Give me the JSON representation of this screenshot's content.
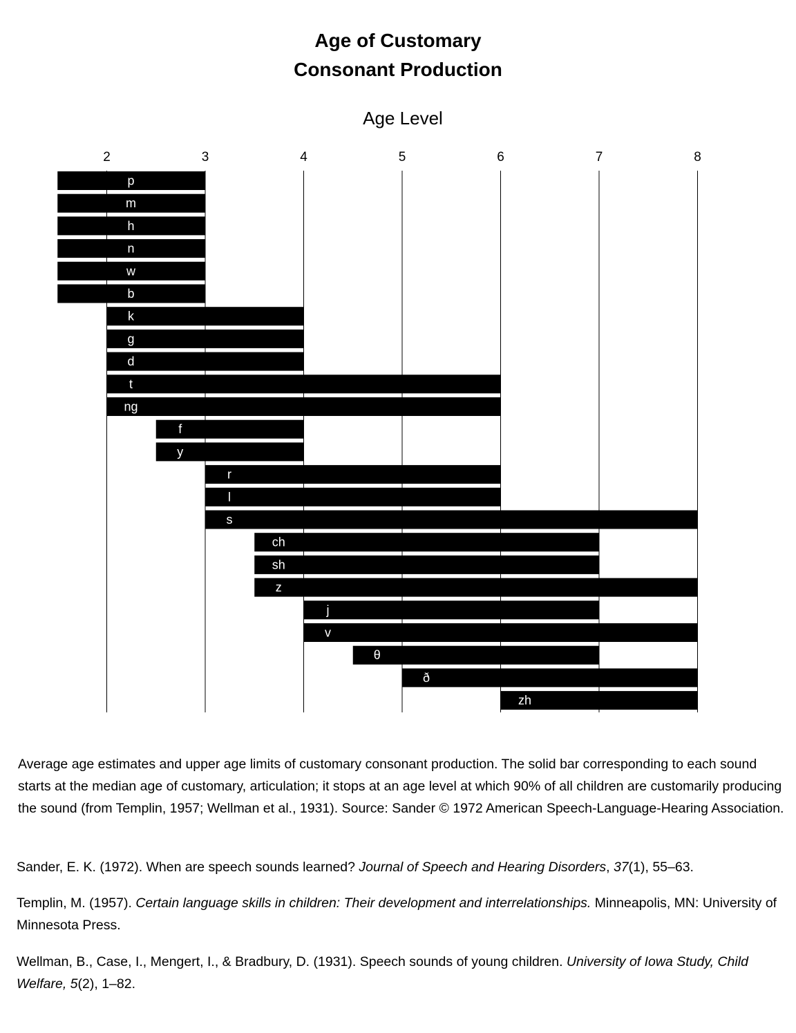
{
  "chart_data": {
    "type": "bar",
    "orientation": "horizontal-range",
    "title": [
      "Age of Customary",
      "Consonant Production"
    ],
    "xlabel": "Age Level",
    "x_ticks": [
      2,
      3,
      4,
      5,
      6,
      7,
      8
    ],
    "xlim": [
      1.5,
      8
    ],
    "axis_position": "top",
    "grid": "vertical lines at each tick",
    "bar_color": "#000000",
    "label_color": "#ffffff",
    "series": [
      {
        "sound": "p",
        "start": 1.5,
        "end": 3
      },
      {
        "sound": "m",
        "start": 1.5,
        "end": 3
      },
      {
        "sound": "h",
        "start": 1.5,
        "end": 3
      },
      {
        "sound": "n",
        "start": 1.5,
        "end": 3
      },
      {
        "sound": "w",
        "start": 1.5,
        "end": 3
      },
      {
        "sound": "b",
        "start": 1.5,
        "end": 3
      },
      {
        "sound": "k",
        "start": 2,
        "end": 4
      },
      {
        "sound": "g",
        "start": 2,
        "end": 4
      },
      {
        "sound": "d",
        "start": 2,
        "end": 4
      },
      {
        "sound": "t",
        "start": 2,
        "end": 6
      },
      {
        "sound": "ng",
        "start": 2,
        "end": 6
      },
      {
        "sound": "f",
        "start": 2.5,
        "end": 4
      },
      {
        "sound": "y",
        "start": 2.5,
        "end": 4
      },
      {
        "sound": "r",
        "start": 3,
        "end": 6
      },
      {
        "sound": "l",
        "start": 3,
        "end": 6
      },
      {
        "sound": "s",
        "start": 3,
        "end": 8
      },
      {
        "sound": "ch",
        "start": 3.5,
        "end": 7
      },
      {
        "sound": "sh",
        "start": 3.5,
        "end": 7
      },
      {
        "sound": "z",
        "start": 3.5,
        "end": 8
      },
      {
        "sound": "j",
        "start": 4,
        "end": 7
      },
      {
        "sound": "v",
        "start": 4,
        "end": 8
      },
      {
        "sound": "θ",
        "start": 4.5,
        "end": 7
      },
      {
        "sound": "ð",
        "start": 5,
        "end": 8
      },
      {
        "sound": "zh",
        "start": 6,
        "end": 8
      }
    ]
  },
  "caption": "Average age estimates and upper age limits of customary consonant production. The solid bar corresponding to each sound starts at the median age of customary, articulation; it stops at an age level at which 90% of all children are customarily producing the sound (from Templin, 1957; Wellman et al., 1931). Source: Sander © 1972 American Speech-Language-Hearing Association.",
  "references": {
    "sander": {
      "pre": "Sander, E. K. (1972). When are speech sounds learned? ",
      "journal": "Journal of Speech and Hearing Disorders",
      "mid": ", ",
      "volume": "37",
      "post": "(1), 55–63."
    },
    "templin": {
      "pre": "Templin, M. (1957). ",
      "title": "Certain language skills in children: Their development and interrelationships.",
      "post": " Minneapolis, MN: University of Minnesota Press."
    },
    "wellman": {
      "pre": "Wellman, B., Case, I., Mengert, I., & Bradbury, D. (1931). Speech sounds of young children. ",
      "journal": "University of Iowa Study, Child Welfare, ",
      "volume": "5",
      "post": "(2), 1–82."
    }
  }
}
